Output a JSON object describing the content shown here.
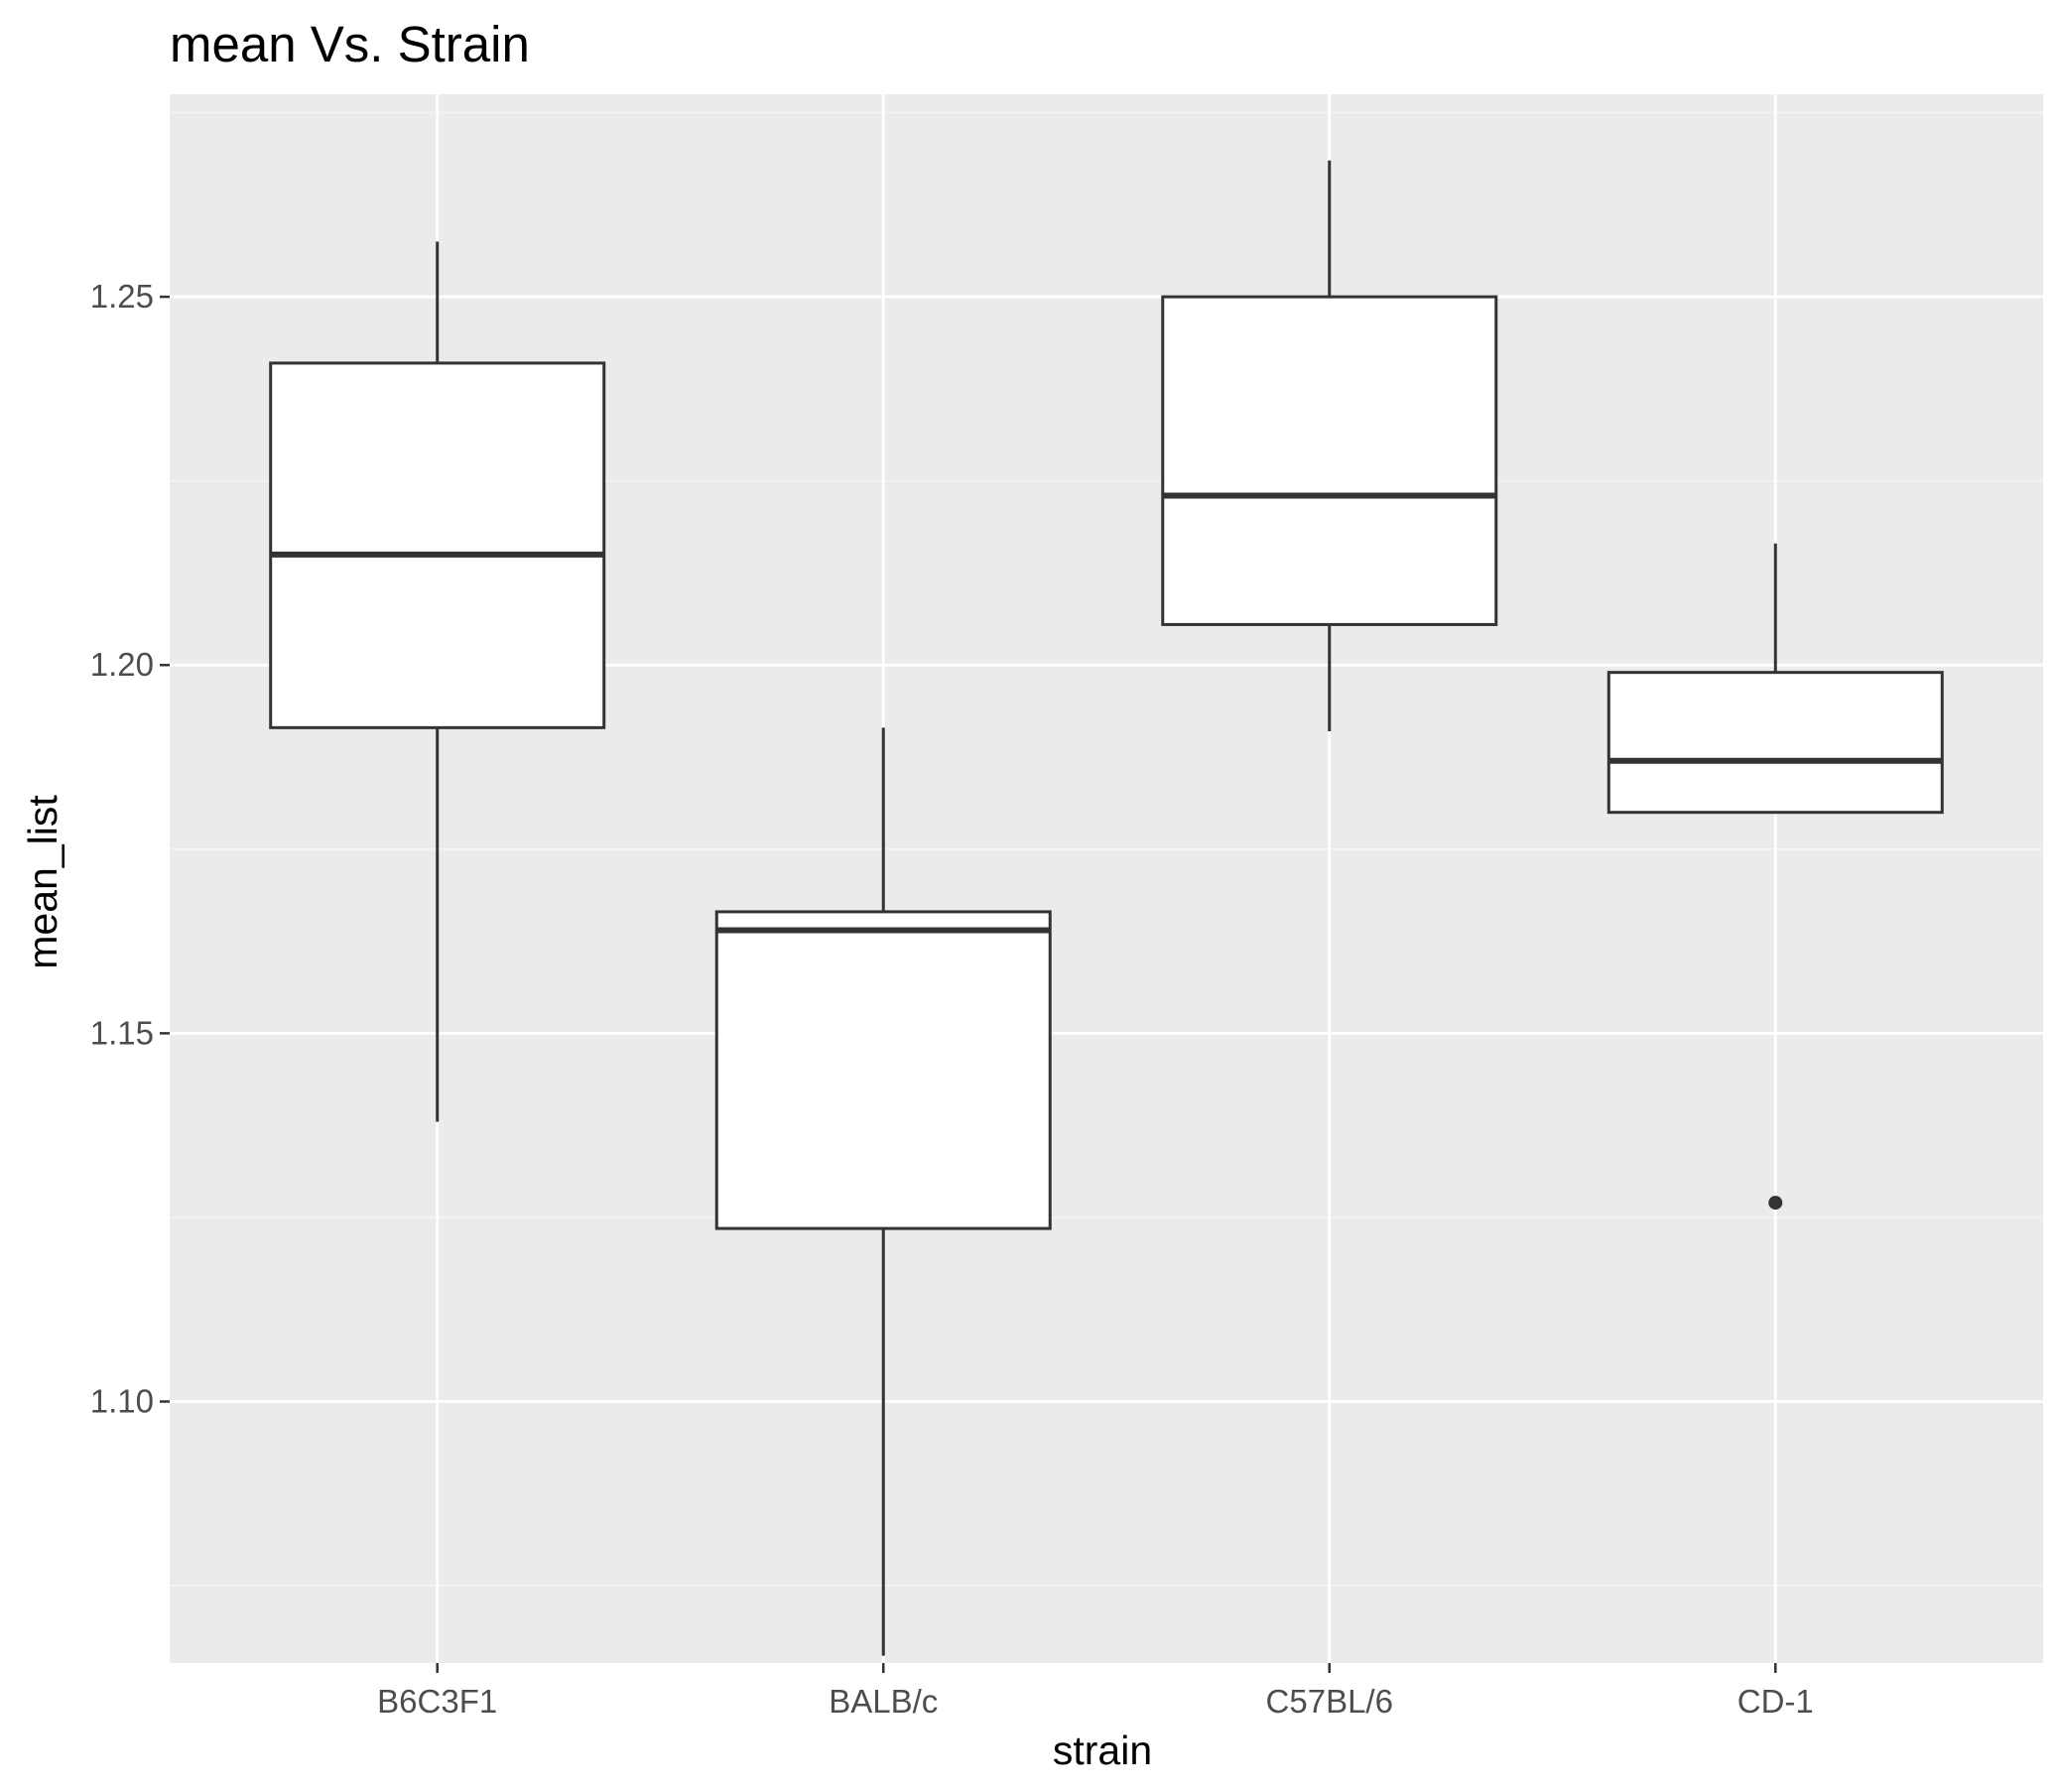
{
  "chart_data": {
    "type": "boxplot",
    "title": "mean Vs. Strain",
    "xlabel": "strain",
    "ylabel": "mean_list",
    "categories": [
      "B6C3F1",
      "BALB/c",
      "C57BL/6",
      "CD-1"
    ],
    "ylim": [
      1.0645,
      1.2775
    ],
    "y_ticks": [
      1.1,
      1.15,
      1.2,
      1.25
    ],
    "y_tick_labels": [
      "1.10",
      "1.15",
      "1.20",
      "1.25"
    ],
    "boxes": [
      {
        "category": "B6C3F1",
        "whisker_low": 1.138,
        "q1": 1.1915,
        "median": 1.215,
        "q3": 1.241,
        "whisker_high": 1.2575,
        "outliers": []
      },
      {
        "category": "BALB/c",
        "whisker_low": 1.0655,
        "q1": 1.1235,
        "median": 1.164,
        "q3": 1.1665,
        "whisker_high": 1.1915,
        "outliers": []
      },
      {
        "category": "C57BL/6",
        "whisker_low": 1.191,
        "q1": 1.2055,
        "median": 1.223,
        "q3": 1.25,
        "whisker_high": 1.2685,
        "outliers": []
      },
      {
        "category": "CD-1",
        "whisker_low": 1.18,
        "q1": 1.18,
        "median": 1.187,
        "q3": 1.199,
        "whisker_high": 1.2165,
        "outliers": [
          1.127
        ]
      }
    ],
    "grid": true,
    "legend": "none",
    "colors": {
      "panel_background": "#ebebeb",
      "grid_major": "#ffffff",
      "grid_minor": "#f5f5f5",
      "box_fill": "#ffffff",
      "box_stroke": "#333333",
      "tick_text": "#4d4d4d",
      "tick_mark": "#333333",
      "title_text": "#000000"
    }
  }
}
